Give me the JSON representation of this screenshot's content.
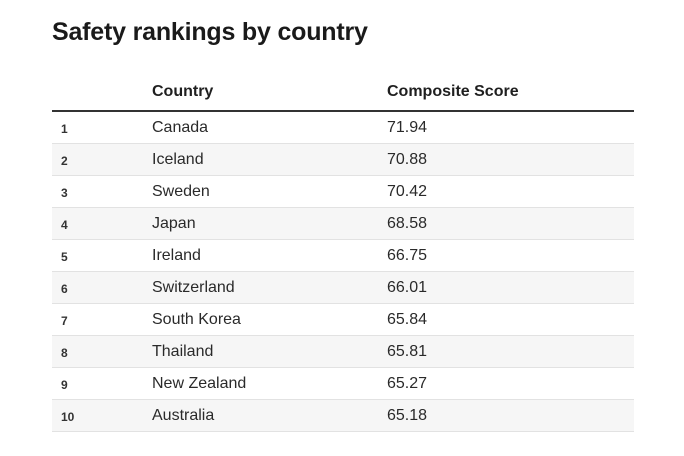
{
  "title": "Safety rankings by country",
  "chart_data": {
    "type": "table",
    "title": "Safety rankings by country",
    "columns": [
      "",
      "Country",
      "Composite Score"
    ],
    "rows": [
      {
        "rank": "1",
        "country": "Canada",
        "score": "71.94"
      },
      {
        "rank": "2",
        "country": "Iceland",
        "score": "70.88"
      },
      {
        "rank": "3",
        "country": "Sweden",
        "score": "70.42"
      },
      {
        "rank": "4",
        "country": "Japan",
        "score": "68.58"
      },
      {
        "rank": "5",
        "country": "Ireland",
        "score": "66.75"
      },
      {
        "rank": "6",
        "country": "Switzerland",
        "score": "66.01"
      },
      {
        "rank": "7",
        "country": "South Korea",
        "score": "65.84"
      },
      {
        "rank": "8",
        "country": "Thailand",
        "score": "65.81"
      },
      {
        "rank": "9",
        "country": "New Zealand",
        "score": "65.27"
      },
      {
        "rank": "10",
        "country": "Australia",
        "score": "65.18"
      }
    ]
  },
  "colors": {
    "stripe": "#f6f6f6",
    "rule": "#333333",
    "text": "#222222"
  }
}
